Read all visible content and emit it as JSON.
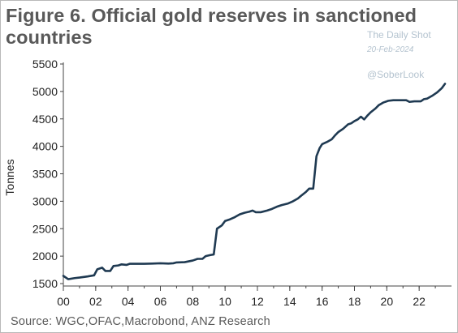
{
  "title": "Figure 6. Official gold reserves in sanctioned countries",
  "watermark": {
    "line1": "The Daily Shot",
    "line2": "20-Feb-2024",
    "line3": "@SoberLook"
  },
  "source": "Source:  WGC,OFAC,Macrobond, ANZ Research",
  "colors": {
    "line": "#1f3a52",
    "axis": "#444444"
  },
  "chart_data": {
    "type": "line",
    "title": "Figure 6. Official gold reserves in sanctioned countries",
    "xlabel": "",
    "ylabel": "Tonnes",
    "xlim": [
      2000,
      2024
    ],
    "ylim": [
      1500,
      5500
    ],
    "x_ticks": [
      {
        "value": 2000,
        "label": "00"
      },
      {
        "value": 2002,
        "label": "02"
      },
      {
        "value": 2004,
        "label": "04"
      },
      {
        "value": 2006,
        "label": "06"
      },
      {
        "value": 2008,
        "label": "08"
      },
      {
        "value": 2010,
        "label": "10"
      },
      {
        "value": 2012,
        "label": "12"
      },
      {
        "value": 2014,
        "label": "14"
      },
      {
        "value": 2016,
        "label": "16"
      },
      {
        "value": 2018,
        "label": "18"
      },
      {
        "value": 2020,
        "label": "20"
      },
      {
        "value": 2022,
        "label": "22"
      }
    ],
    "y_ticks": [
      1500,
      2000,
      2500,
      3000,
      3500,
      4000,
      4500,
      5000,
      5500
    ],
    "grid": false,
    "legend": "none",
    "series": [
      {
        "points": [
          [
            2000.0,
            1640
          ],
          [
            2000.3,
            1580
          ],
          [
            2000.7,
            1600
          ],
          [
            2001.0,
            1610
          ],
          [
            2001.5,
            1630
          ],
          [
            2001.9,
            1650
          ],
          [
            2002.1,
            1760
          ],
          [
            2002.4,
            1790
          ],
          [
            2002.6,
            1730
          ],
          [
            2002.9,
            1730
          ],
          [
            2003.1,
            1820
          ],
          [
            2003.4,
            1830
          ],
          [
            2003.6,
            1850
          ],
          [
            2003.9,
            1840
          ],
          [
            2004.1,
            1860
          ],
          [
            2004.6,
            1860
          ],
          [
            2005.0,
            1860
          ],
          [
            2005.5,
            1865
          ],
          [
            2006.0,
            1870
          ],
          [
            2006.5,
            1865
          ],
          [
            2006.8,
            1870
          ],
          [
            2007.0,
            1885
          ],
          [
            2007.5,
            1890
          ],
          [
            2008.0,
            1920
          ],
          [
            2008.3,
            1950
          ],
          [
            2008.6,
            1950
          ],
          [
            2008.8,
            2000
          ],
          [
            2009.1,
            2020
          ],
          [
            2009.3,
            2030
          ],
          [
            2009.5,
            2500
          ],
          [
            2009.8,
            2560
          ],
          [
            2010.0,
            2640
          ],
          [
            2010.3,
            2670
          ],
          [
            2010.6,
            2710
          ],
          [
            2010.9,
            2760
          ],
          [
            2011.2,
            2790
          ],
          [
            2011.5,
            2810
          ],
          [
            2011.7,
            2830
          ],
          [
            2011.9,
            2800
          ],
          [
            2012.2,
            2800
          ],
          [
            2012.6,
            2830
          ],
          [
            2012.9,
            2860
          ],
          [
            2013.2,
            2900
          ],
          [
            2013.5,
            2930
          ],
          [
            2013.9,
            2960
          ],
          [
            2014.2,
            3000
          ],
          [
            2014.5,
            3050
          ],
          [
            2014.7,
            3100
          ],
          [
            2015.0,
            3170
          ],
          [
            2015.2,
            3230
          ],
          [
            2015.45,
            3230
          ],
          [
            2015.65,
            3820
          ],
          [
            2015.85,
            3970
          ],
          [
            2016.0,
            4040
          ],
          [
            2016.3,
            4080
          ],
          [
            2016.6,
            4130
          ],
          [
            2016.8,
            4200
          ],
          [
            2017.0,
            4260
          ],
          [
            2017.3,
            4320
          ],
          [
            2017.6,
            4400
          ],
          [
            2017.8,
            4420
          ],
          [
            2018.0,
            4460
          ],
          [
            2018.2,
            4490
          ],
          [
            2018.4,
            4540
          ],
          [
            2018.6,
            4490
          ],
          [
            2018.8,
            4560
          ],
          [
            2019.0,
            4620
          ],
          [
            2019.3,
            4690
          ],
          [
            2019.5,
            4750
          ],
          [
            2019.8,
            4800
          ],
          [
            2020.1,
            4830
          ],
          [
            2020.4,
            4840
          ],
          [
            2020.8,
            4840
          ],
          [
            2021.2,
            4840
          ],
          [
            2021.4,
            4810
          ],
          [
            2021.7,
            4820
          ],
          [
            2022.1,
            4820
          ],
          [
            2022.3,
            4860
          ],
          [
            2022.5,
            4870
          ],
          [
            2022.8,
            4920
          ],
          [
            2023.1,
            4980
          ],
          [
            2023.4,
            5060
          ],
          [
            2023.6,
            5140
          ]
        ]
      }
    ]
  }
}
